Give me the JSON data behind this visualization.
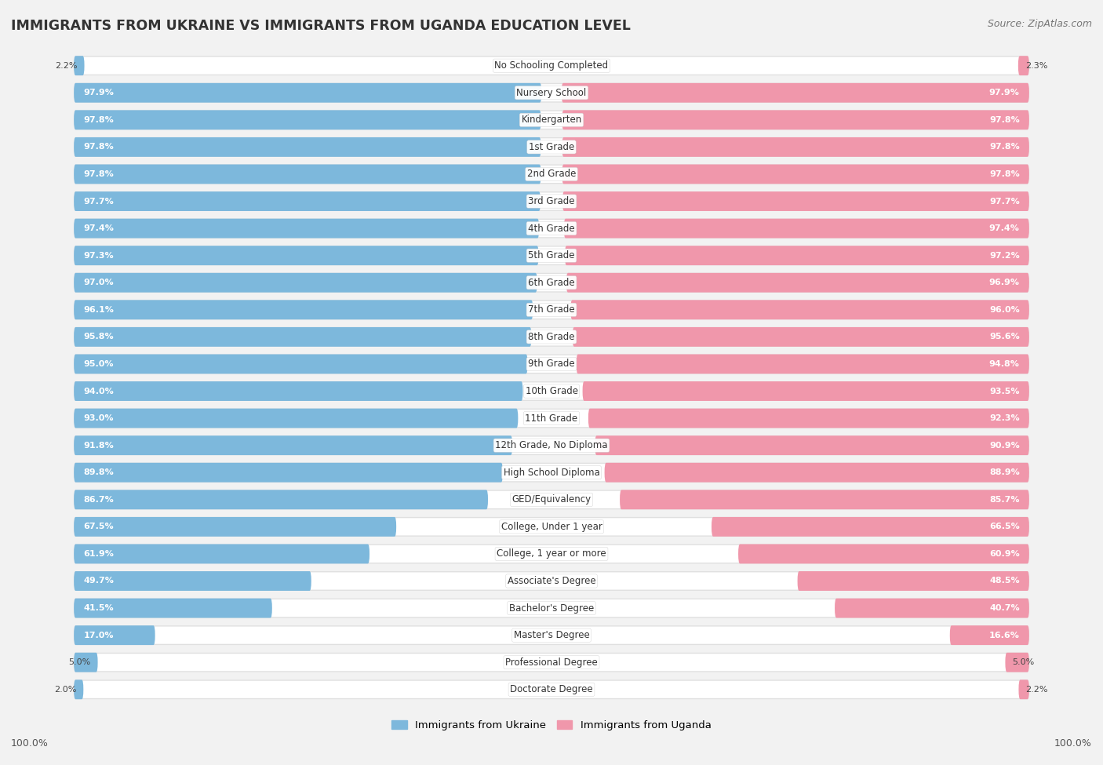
{
  "title": "IMMIGRANTS FROM UKRAINE VS IMMIGRANTS FROM UGANDA EDUCATION LEVEL",
  "source": "Source: ZipAtlas.com",
  "categories": [
    "No Schooling Completed",
    "Nursery School",
    "Kindergarten",
    "1st Grade",
    "2nd Grade",
    "3rd Grade",
    "4th Grade",
    "5th Grade",
    "6th Grade",
    "7th Grade",
    "8th Grade",
    "9th Grade",
    "10th Grade",
    "11th Grade",
    "12th Grade, No Diploma",
    "High School Diploma",
    "GED/Equivalency",
    "College, Under 1 year",
    "College, 1 year or more",
    "Associate's Degree",
    "Bachelor's Degree",
    "Master's Degree",
    "Professional Degree",
    "Doctorate Degree"
  ],
  "ukraine_values": [
    2.2,
    97.9,
    97.8,
    97.8,
    97.8,
    97.7,
    97.4,
    97.3,
    97.0,
    96.1,
    95.8,
    95.0,
    94.0,
    93.0,
    91.8,
    89.8,
    86.7,
    67.5,
    61.9,
    49.7,
    41.5,
    17.0,
    5.0,
    2.0
  ],
  "uganda_values": [
    2.3,
    97.9,
    97.8,
    97.8,
    97.8,
    97.7,
    97.4,
    97.2,
    96.9,
    96.0,
    95.6,
    94.8,
    93.5,
    92.3,
    90.9,
    88.9,
    85.7,
    66.5,
    60.9,
    48.5,
    40.7,
    16.6,
    5.0,
    2.2
  ],
  "ukraine_color": "#7DB8DC",
  "uganda_color": "#F097AB",
  "bg_color": "#F2F2F2",
  "row_bg_color": "#FFFFFF",
  "row_outer_color": "#E0E0E0",
  "label_ukraine": "Immigrants from Ukraine",
  "label_uganda": "Immigrants from Uganda",
  "axis_label_left": "100.0%",
  "axis_label_right": "100.0%",
  "label_fontsize": 8.5,
  "value_fontsize": 8.0
}
